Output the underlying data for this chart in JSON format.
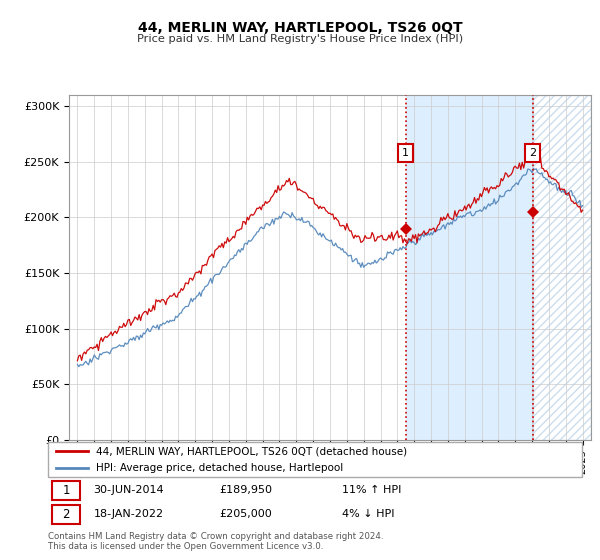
{
  "title": "44, MERLIN WAY, HARTLEPOOL, TS26 0QT",
  "subtitle": "Price paid vs. HM Land Registry's House Price Index (HPI)",
  "legend_line1": "44, MERLIN WAY, HARTLEPOOL, TS26 0QT (detached house)",
  "legend_line2": "HPI: Average price, detached house, Hartlepool",
  "annotation1_date": "30-JUN-2014",
  "annotation1_price": "£189,950",
  "annotation1_hpi": "11% ↑ HPI",
  "annotation2_date": "18-JAN-2022",
  "annotation2_price": "£205,000",
  "annotation2_hpi": "4% ↓ HPI",
  "footer": "Contains HM Land Registry data © Crown copyright and database right 2024.\nThis data is licensed under the Open Government Licence v3.0.",
  "sale1_year": 2014.5,
  "sale1_value": 189950,
  "sale2_year": 2022.05,
  "sale2_value": 205000,
  "red_color": "#cc0000",
  "blue_color": "#5588bb",
  "shade_color": "#ddeeff",
  "hatch_color": "#ccddee",
  "ylim_min": 0,
  "ylim_max": 310000,
  "xlim_min": 1994.5,
  "xlim_max": 2025.5
}
